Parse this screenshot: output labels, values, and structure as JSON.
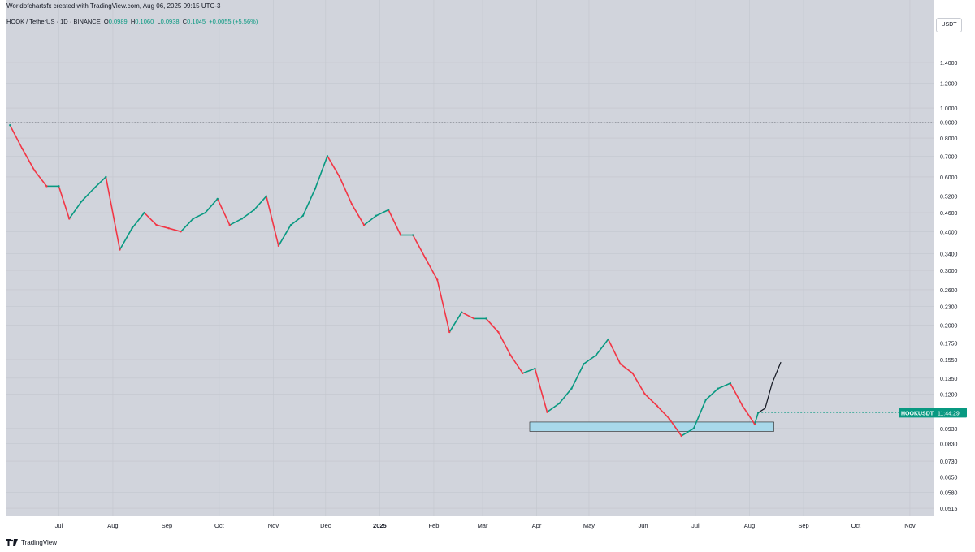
{
  "header": {
    "credit": "Worldofchartsfx created with TradingView.com, Aug 06, 2025 09:15 UTC-3",
    "symbol_line": "HOOK / TetherUS · 1D · BINANCE",
    "ohlc": {
      "open_label": "O",
      "open": "0.0989",
      "high_label": "H",
      "high": "0.1060",
      "low_label": "L",
      "low": "0.0938",
      "close_label": "C",
      "close": "0.1045",
      "change": "+0.0055 (+5.56%)"
    }
  },
  "footer": {
    "brand": "TradingView"
  },
  "chart_data": {
    "type": "line",
    "title": "",
    "currency_badge": "USDT",
    "y_scale": "log",
    "grid": true,
    "y_ticks": [
      "1.4000",
      "1.2000",
      "1.0000",
      "0.9000",
      "0.8000",
      "0.7000",
      "0.6000",
      "0.5200",
      "0.4600",
      "0.4000",
      "0.3400",
      "0.3000",
      "0.2600",
      "0.2300",
      "0.2000",
      "0.1750",
      "0.1550",
      "0.1350",
      "0.1200",
      "0.0930",
      "0.0830",
      "0.0730",
      "0.0650",
      "0.0580",
      "0.0515"
    ],
    "x_ticks": [
      "Jul",
      "Aug",
      "Sep",
      "Oct",
      "Nov",
      "Dec",
      "2025",
      "Feb",
      "Mar",
      "Apr",
      "May",
      "Jun",
      "Jul",
      "Aug",
      "Sep",
      "Oct",
      "Nov"
    ],
    "series": [
      {
        "values": [
          {
            "x": "2024-06-03",
            "y": 0.88
          },
          {
            "x": "2024-06-10",
            "y": 0.74
          },
          {
            "x": "2024-06-17",
            "y": 0.63
          },
          {
            "x": "2024-06-24",
            "y": 0.56
          },
          {
            "x": "2024-07-01",
            "y": 0.56
          },
          {
            "x": "2024-07-07",
            "y": 0.44
          },
          {
            "x": "2024-07-14",
            "y": 0.5
          },
          {
            "x": "2024-07-21",
            "y": 0.55
          },
          {
            "x": "2024-07-28",
            "y": 0.6
          },
          {
            "x": "2024-08-05",
            "y": 0.35
          },
          {
            "x": "2024-08-12",
            "y": 0.41
          },
          {
            "x": "2024-08-19",
            "y": 0.46
          },
          {
            "x": "2024-08-26",
            "y": 0.42
          },
          {
            "x": "2024-09-02",
            "y": 0.41
          },
          {
            "x": "2024-09-09",
            "y": 0.4
          },
          {
            "x": "2024-09-16",
            "y": 0.44
          },
          {
            "x": "2024-09-23",
            "y": 0.46
          },
          {
            "x": "2024-09-30",
            "y": 0.51
          },
          {
            "x": "2024-10-07",
            "y": 0.42
          },
          {
            "x": "2024-10-14",
            "y": 0.44
          },
          {
            "x": "2024-10-21",
            "y": 0.47
          },
          {
            "x": "2024-10-28",
            "y": 0.52
          },
          {
            "x": "2024-11-04",
            "y": 0.36
          },
          {
            "x": "2024-11-11",
            "y": 0.42
          },
          {
            "x": "2024-11-18",
            "y": 0.45
          },
          {
            "x": "2024-11-25",
            "y": 0.55
          },
          {
            "x": "2024-12-02",
            "y": 0.7
          },
          {
            "x": "2024-12-09",
            "y": 0.6
          },
          {
            "x": "2024-12-16",
            "y": 0.49
          },
          {
            "x": "2024-12-23",
            "y": 0.42
          },
          {
            "x": "2024-12-30",
            "y": 0.45
          },
          {
            "x": "2025-01-06",
            "y": 0.47
          },
          {
            "x": "2025-01-13",
            "y": 0.39
          },
          {
            "x": "2025-01-20",
            "y": 0.39
          },
          {
            "x": "2025-01-27",
            "y": 0.33
          },
          {
            "x": "2025-02-03",
            "y": 0.28
          },
          {
            "x": "2025-02-10",
            "y": 0.19
          },
          {
            "x": "2025-02-17",
            "y": 0.22
          },
          {
            "x": "2025-02-24",
            "y": 0.21
          },
          {
            "x": "2025-03-03",
            "y": 0.21
          },
          {
            "x": "2025-03-10",
            "y": 0.19
          },
          {
            "x": "2025-03-17",
            "y": 0.16
          },
          {
            "x": "2025-03-24",
            "y": 0.14
          },
          {
            "x": "2025-03-31",
            "y": 0.145
          },
          {
            "x": "2025-04-07",
            "y": 0.105
          },
          {
            "x": "2025-04-14",
            "y": 0.112
          },
          {
            "x": "2025-04-21",
            "y": 0.125
          },
          {
            "x": "2025-04-28",
            "y": 0.15
          },
          {
            "x": "2025-05-05",
            "y": 0.16
          },
          {
            "x": "2025-05-12",
            "y": 0.18
          },
          {
            "x": "2025-05-19",
            "y": 0.15
          },
          {
            "x": "2025-05-26",
            "y": 0.14
          },
          {
            "x": "2025-06-02",
            "y": 0.12
          },
          {
            "x": "2025-06-09",
            "y": 0.11
          },
          {
            "x": "2025-06-16",
            "y": 0.1
          },
          {
            "x": "2025-06-23",
            "y": 0.088
          },
          {
            "x": "2025-06-30",
            "y": 0.093
          },
          {
            "x": "2025-07-07",
            "y": 0.115
          },
          {
            "x": "2025-07-14",
            "y": 0.125
          },
          {
            "x": "2025-07-21",
            "y": 0.13
          },
          {
            "x": "2025-07-28",
            "y": 0.11
          },
          {
            "x": "2025-08-04",
            "y": 0.096
          },
          {
            "x": "2025-08-06",
            "y": 0.1045
          }
        ]
      }
    ],
    "last_price_label": "HOOKUSDT",
    "countdown": "11:44:29",
    "support_zone": {
      "from": 0.091,
      "to": 0.0975
    },
    "dotted_level": 0.9,
    "projection": [
      {
        "x": "2025-08-06",
        "y": 0.1045
      },
      {
        "x": "2025-08-10",
        "y": 0.108
      },
      {
        "x": "2025-08-14",
        "y": 0.13
      },
      {
        "x": "2025-08-19",
        "y": 0.152
      }
    ],
    "colors": {
      "up": "#089981",
      "down": "#f23645",
      "background": "#d1d4dc",
      "zone_fill": "#a8d8ea",
      "zone_border": "#1e1e1e"
    }
  }
}
